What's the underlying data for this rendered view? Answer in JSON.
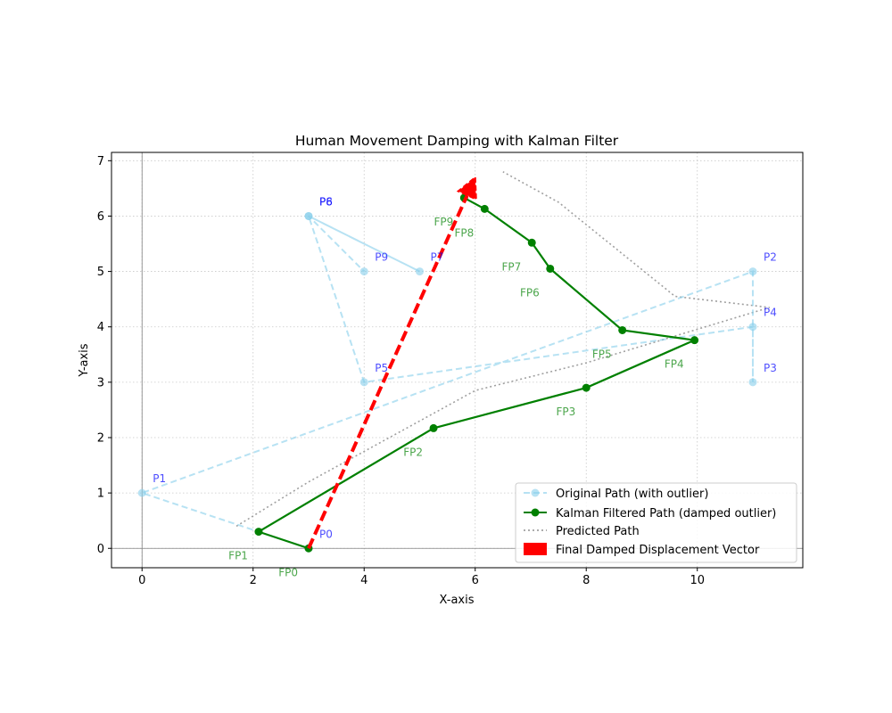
{
  "chart_data": {
    "type": "line",
    "title": "Human Movement Damping with Kalman Filter",
    "xlabel": "X-axis",
    "ylabel": "Y-axis",
    "xlim": [
      -0.55,
      11.9
    ],
    "ylim": [
      -0.35,
      7.15
    ],
    "xticks": [
      0,
      2,
      4,
      6,
      8,
      10
    ],
    "yticks": [
      0,
      1,
      2,
      3,
      4,
      5,
      6,
      7
    ],
    "grid": true,
    "legend_position": "lower right",
    "series": [
      {
        "name": "Original Path (with outlier)",
        "style": "dashed-marker",
        "color": "#87ceeb",
        "points": [
          {
            "x": 3,
            "y": 0,
            "label": "P0"
          },
          {
            "x": 0,
            "y": 1,
            "label": "P1"
          },
          {
            "x": 11,
            "y": 5,
            "label": "P2"
          },
          {
            "x": 11,
            "y": 3,
            "label": "P3"
          },
          {
            "x": 11,
            "y": 4,
            "label": "P4"
          },
          {
            "x": 4,
            "y": 3,
            "label": "P5"
          },
          {
            "x": 3,
            "y": 6,
            "label": "P6"
          },
          {
            "x": 5,
            "y": 5,
            "label": "P7"
          },
          {
            "x": 3,
            "y": 6,
            "label": "P8"
          },
          {
            "x": 4,
            "y": 5,
            "label": "P9"
          }
        ]
      },
      {
        "name": "Kalman Filtered Path (damped outlier)",
        "style": "solid-marker",
        "color": "#008000",
        "points": [
          {
            "x": 3.0,
            "y": 0.0,
            "label": "FP0"
          },
          {
            "x": 2.1,
            "y": 0.3,
            "label": "FP1"
          },
          {
            "x": 5.25,
            "y": 2.17,
            "label": "FP2"
          },
          {
            "x": 8.0,
            "y": 2.9,
            "label": "FP3"
          },
          {
            "x": 9.95,
            "y": 3.76,
            "label": "FP4"
          },
          {
            "x": 8.65,
            "y": 3.94,
            "label": "FP5"
          },
          {
            "x": 7.35,
            "y": 5.05,
            "label": "FP6"
          },
          {
            "x": 7.02,
            "y": 5.52,
            "label": "FP7"
          },
          {
            "x": 6.17,
            "y": 6.13,
            "label": "FP8"
          },
          {
            "x": 5.8,
            "y": 6.33,
            "label": "FP9"
          }
        ]
      },
      {
        "name": "Predicted Path",
        "style": "dotted",
        "color": "#a0a0a0",
        "points": [
          {
            "x": 1.7,
            "y": 0.4
          },
          {
            "x": 3.0,
            "y": 1.2
          },
          {
            "x": 6.0,
            "y": 2.85
          },
          {
            "x": 8.0,
            "y": 3.35
          },
          {
            "x": 11.3,
            "y": 4.35
          },
          {
            "x": 9.6,
            "y": 4.55
          },
          {
            "x": 7.5,
            "y": 6.25
          },
          {
            "x": 6.5,
            "y": 6.8
          }
        ]
      }
    ],
    "vector": {
      "name": "Final Damped Displacement Vector",
      "color": "#ff0000",
      "from": {
        "x": 3.0,
        "y": 0.0
      },
      "to": {
        "x": 6.0,
        "y": 6.7
      }
    }
  }
}
